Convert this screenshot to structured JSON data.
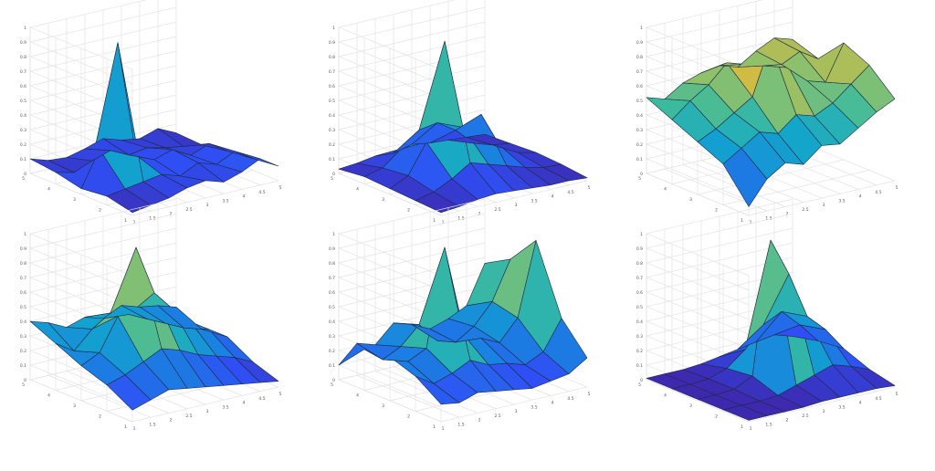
{
  "figure": {
    "background": "#ffffff"
  },
  "colormap": [
    "#3e26a8",
    "#2f4ff5",
    "#1a82e0",
    "#12a5cc",
    "#3ebb9c",
    "#8cc06c",
    "#d9ba3f",
    "#fbd52a",
    "#f9fb0e"
  ],
  "chart_data": [
    {
      "type": "surface",
      "title": "",
      "zlim": [
        0,
        1
      ],
      "z_ticks": [
        "0",
        "0.1",
        "0.2",
        "0.3",
        "0.4",
        "0.5",
        "0.6",
        "0.7",
        "0.8",
        "0.9",
        "1"
      ],
      "x_ticks": [
        "1",
        "1.5",
        "2",
        "2.5",
        "3",
        "3.5",
        "4",
        "4.5",
        "5"
      ],
      "y_ticks": [
        "1",
        "2",
        "3",
        "4",
        "5"
      ],
      "z": [
        [
          0.1,
          0.06,
          0.05,
          0.08,
          0.12,
          0.08,
          0.06,
          0.1,
          0.04
        ],
        [
          0.08,
          0.05,
          0.1,
          0.14,
          0.08,
          0.1,
          0.07,
          0.05,
          0.03
        ],
        [
          0.04,
          0.28,
          0.98,
          0.18,
          0.12,
          0.16,
          0.09,
          0.14,
          0.06
        ],
        [
          0.06,
          0.08,
          0.1,
          0.12,
          0.08,
          0.14,
          0.1,
          0.16,
          0.08
        ],
        [
          0.02,
          0.04,
          0.06,
          0.1,
          0.12,
          0.08,
          0.12,
          0.18,
          0.1
        ]
      ]
    },
    {
      "type": "surface",
      "title": "",
      "zlim": [
        0,
        1
      ],
      "z_ticks": [
        "0",
        "0.1",
        "0.2",
        "0.3",
        "0.4",
        "0.5",
        "0.6",
        "0.7",
        "0.8",
        "0.9",
        "1"
      ],
      "x_ticks": [
        "1",
        "1.5",
        "2",
        "2.5",
        "3",
        "3.5",
        "4",
        "4.5",
        "5"
      ],
      "y_ticks": [
        "1",
        "2",
        "3",
        "4",
        "5"
      ],
      "z": [
        [
          0.03,
          0.04,
          0.06,
          0.05,
          0.08,
          0.06,
          0.05,
          0.04,
          0.03
        ],
        [
          0.05,
          0.08,
          0.18,
          0.28,
          0.3,
          0.22,
          0.1,
          0.06,
          0.04
        ],
        [
          0.04,
          0.1,
          0.3,
          0.96,
          0.34,
          0.4,
          0.16,
          0.08,
          0.05
        ],
        [
          0.03,
          0.06,
          0.12,
          0.2,
          0.16,
          0.12,
          0.08,
          0.05,
          0.04
        ],
        [
          0.02,
          0.03,
          0.05,
          0.06,
          0.05,
          0.04,
          0.03,
          0.03,
          0.02
        ]
      ]
    },
    {
      "type": "surface",
      "title": "",
      "zlim": [
        0,
        1
      ],
      "z_ticks": [
        "0",
        "0.1",
        "0.2",
        "0.3",
        "0.4",
        "0.5",
        "0.6",
        "0.7",
        "0.8",
        "0.9",
        "1"
      ],
      "x_ticks": [
        "1",
        "1.5",
        "2",
        "2.5",
        "3",
        "3.5",
        "4",
        "4.5",
        "5"
      ],
      "y_ticks": [
        "1",
        "2",
        "3",
        "4",
        "5"
      ],
      "z": [
        [
          0.52,
          0.48,
          0.56,
          0.6,
          0.62,
          0.58,
          0.66,
          0.72,
          0.68
        ],
        [
          0.44,
          0.54,
          0.62,
          0.74,
          0.7,
          0.66,
          0.64,
          0.7,
          0.62
        ],
        [
          0.36,
          0.42,
          0.5,
          0.58,
          0.92,
          0.72,
          0.6,
          0.56,
          0.8
        ],
        [
          0.28,
          0.36,
          0.44,
          0.4,
          0.5,
          0.46,
          0.52,
          0.62,
          0.72
        ],
        [
          0.06,
          0.22,
          0.3,
          0.26,
          0.36,
          0.34,
          0.42,
          0.5,
          0.56
        ]
      ]
    },
    {
      "type": "surface",
      "title": "",
      "zlim": [
        0,
        1
      ],
      "z_ticks": [
        "0",
        "0.1",
        "0.2",
        "0.3",
        "0.4",
        "0.5",
        "0.6",
        "0.7",
        "0.8",
        "0.9",
        "1"
      ],
      "x_ticks": [
        "1",
        "1.5",
        "2",
        "2.5",
        "3",
        "3.5",
        "4",
        "4.5",
        "5"
      ],
      "y_ticks": [
        "1",
        "2",
        "3",
        "4",
        "5"
      ],
      "z": [
        [
          0.4,
          0.36,
          0.3,
          0.34,
          0.3,
          0.36,
          0.32,
          0.3,
          0.26
        ],
        [
          0.32,
          0.24,
          0.36,
          0.44,
          0.4,
          0.34,
          0.28,
          0.22,
          0.18
        ],
        [
          0.24,
          0.3,
          0.52,
          0.96,
          0.62,
          0.48,
          0.36,
          0.28,
          0.2
        ],
        [
          0.18,
          0.22,
          0.28,
          0.34,
          0.3,
          0.24,
          0.2,
          0.16,
          0.1
        ],
        [
          0.08,
          0.12,
          0.16,
          0.14,
          0.12,
          0.1,
          0.08,
          0.06,
          0.04
        ]
      ]
    },
    {
      "type": "surface",
      "title": "",
      "zlim": [
        0,
        1
      ],
      "z_ticks": [
        "0",
        "0.1",
        "0.2",
        "0.3",
        "0.4",
        "0.5",
        "0.6",
        "0.7",
        "0.8",
        "0.9",
        "1"
      ],
      "x_ticks": [
        "1",
        "1.5",
        "2",
        "2.5",
        "3",
        "3.5",
        "4",
        "4.5",
        "5"
      ],
      "y_ticks": [
        "1",
        "2",
        "3",
        "4",
        "5"
      ],
      "z": [
        [
          0.1,
          0.22,
          0.18,
          0.3,
          0.26,
          0.2,
          0.24,
          0.3,
          0.56
        ],
        [
          0.28,
          0.18,
          0.24,
          0.36,
          0.22,
          0.18,
          0.26,
          0.4,
          0.66
        ],
        [
          0.3,
          0.24,
          0.3,
          0.96,
          0.34,
          0.28,
          0.22,
          0.36,
          0.86
        ],
        [
          0.24,
          0.16,
          0.2,
          0.26,
          0.2,
          0.18,
          0.14,
          0.2,
          0.4
        ],
        [
          0.12,
          0.1,
          0.14,
          0.12,
          0.1,
          0.08,
          0.1,
          0.12,
          0.2
        ]
      ]
    },
    {
      "type": "surface",
      "title": "",
      "zlim": [
        0,
        1
      ],
      "z_ticks": [
        "0",
        "0.1",
        "0.2",
        "0.3",
        "0.4",
        "0.5",
        "0.6",
        "0.7",
        "0.8",
        "0.9",
        "1"
      ],
      "x_ticks": [
        "1",
        "1.5",
        "2",
        "2.5",
        "3",
        "3.5",
        "4",
        "4.5",
        "5"
      ],
      "y_ticks": [
        "1",
        "2",
        "3",
        "4",
        "5"
      ],
      "z": [
        [
          0.01,
          0.01,
          0.01,
          0.02,
          0.04,
          0.06,
          0.08,
          0.1,
          0.06
        ],
        [
          0.01,
          0.01,
          0.02,
          0.06,
          0.16,
          0.3,
          0.36,
          0.24,
          0.1
        ],
        [
          0.01,
          0.01,
          0.02,
          0.08,
          0.98,
          0.72,
          0.4,
          0.28,
          0.12
        ],
        [
          0.01,
          0.01,
          0.01,
          0.02,
          0.06,
          0.1,
          0.14,
          0.1,
          0.05
        ],
        [
          0.01,
          0.01,
          0.01,
          0.01,
          0.02,
          0.02,
          0.02,
          0.02,
          0.01
        ]
      ]
    }
  ]
}
